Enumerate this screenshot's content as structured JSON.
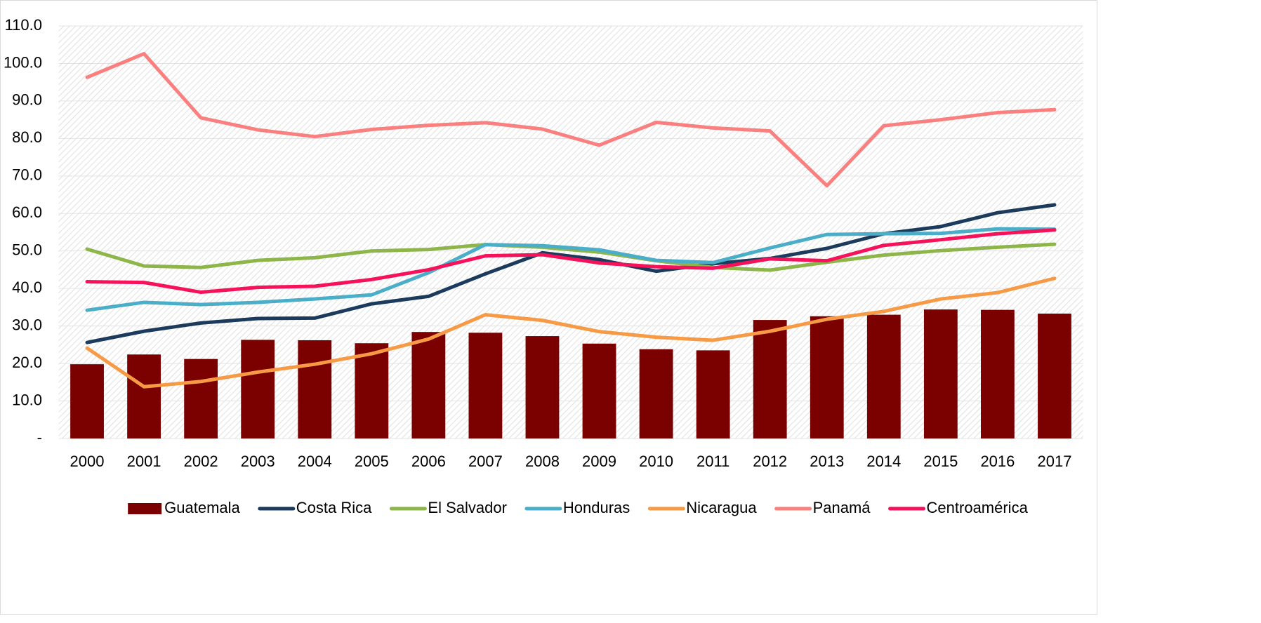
{
  "chart_data": {
    "type": "combo",
    "categories": [
      "2000",
      "2001",
      "2002",
      "2003",
      "2004",
      "2005",
      "2006",
      "2007",
      "2008",
      "2009",
      "2010",
      "2011",
      "2012",
      "2013",
      "2014",
      "2015",
      "2016",
      "2017"
    ],
    "series": [
      {
        "name": "Guatemala",
        "type": "bar",
        "color": "#7b0000",
        "values": [
          19.8,
          22.4,
          21.2,
          26.3,
          26.2,
          25.4,
          28.4,
          28.2,
          27.3,
          25.3,
          23.8,
          23.5,
          31.6,
          32.6,
          33.0,
          34.4,
          34.3,
          33.3
        ]
      },
      {
        "name": "Costa Rica",
        "type": "line",
        "color": "#1b3a5c",
        "values": [
          25.6,
          28.6,
          30.8,
          32.0,
          32.1,
          35.9,
          37.9,
          43.9,
          49.5,
          47.7,
          44.6,
          46.6,
          48.0,
          50.7,
          54.6,
          56.5,
          60.2,
          62.3
        ]
      },
      {
        "name": "El Salvador",
        "type": "line",
        "color": "#8db54a",
        "values": [
          50.5,
          46.0,
          45.6,
          47.5,
          48.2,
          50.0,
          50.4,
          51.7,
          51.0,
          49.7,
          47.4,
          45.6,
          44.9,
          47.0,
          48.9,
          50.1,
          51.0,
          51.8
        ]
      },
      {
        "name": "Honduras",
        "type": "line",
        "color": "#4aaec9",
        "values": [
          34.2,
          36.3,
          35.7,
          36.3,
          37.2,
          38.3,
          44.2,
          51.7,
          51.4,
          50.3,
          47.5,
          46.9,
          50.8,
          54.4,
          54.6,
          54.7,
          55.9,
          55.8
        ]
      },
      {
        "name": "Nicaragua",
        "type": "line",
        "color": "#f79a45",
        "values": [
          24.1,
          13.8,
          15.2,
          17.7,
          19.8,
          22.6,
          26.5,
          33.0,
          31.5,
          28.5,
          27.0,
          26.2,
          28.6,
          31.8,
          33.9,
          37.2,
          38.9,
          42.7
        ]
      },
      {
        "name": "Panamá",
        "type": "line",
        "color": "#fa8080",
        "values": [
          96.3,
          102.6,
          85.5,
          82.3,
          80.5,
          82.4,
          83.5,
          84.2,
          82.5,
          78.2,
          84.3,
          82.8,
          82.0,
          67.4,
          83.4,
          85.0,
          86.9,
          87.7
        ]
      },
      {
        "name": "Centroamérica",
        "type": "line",
        "color": "#f5125a",
        "values": [
          41.8,
          41.6,
          39.0,
          40.3,
          40.6,
          42.4,
          45.0,
          48.7,
          49.0,
          46.8,
          45.8,
          45.4,
          47.9,
          47.4,
          51.5,
          53.0,
          54.6,
          55.6
        ]
      }
    ],
    "ylim": [
      0,
      110
    ],
    "yticks": [
      {
        "value": 0,
        "label": "-"
      },
      {
        "value": 10,
        "label": "10.0"
      },
      {
        "value": 20,
        "label": "20.0"
      },
      {
        "value": 30,
        "label": "30.0"
      },
      {
        "value": 40,
        "label": "40.0"
      },
      {
        "value": 50,
        "label": "50.0"
      },
      {
        "value": 60,
        "label": "60.0"
      },
      {
        "value": 70,
        "label": "70.0"
      },
      {
        "value": 80,
        "label": "80.0"
      },
      {
        "value": 90,
        "label": "90.0"
      },
      {
        "value": 100,
        "label": "100.0"
      },
      {
        "value": 110,
        "label": "110.0"
      }
    ],
    "grid": true,
    "legend": "bottom"
  }
}
